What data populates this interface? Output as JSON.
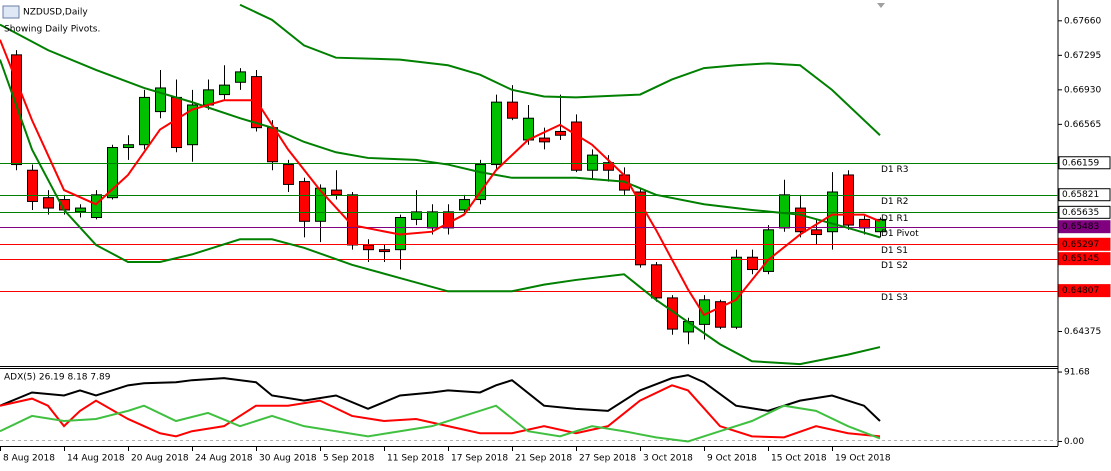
{
  "chart_data": {
    "type": "candlestick",
    "title": "NZDUSD,Daily",
    "subtitle": "Showing Daily Pivots.",
    "categories": [
      "8 Aug 2018",
      null,
      null,
      null,
      "14 Aug 2018",
      null,
      null,
      null,
      "20 Aug 2018",
      null,
      null,
      null,
      "24 Aug 2018",
      null,
      null,
      null,
      "30 Aug 2018",
      null,
      null,
      null,
      "5 Sep 2018",
      null,
      null,
      null,
      "11 Sep 2018",
      null,
      null,
      null,
      "17 Sep 2018",
      null,
      null,
      null,
      "21 Sep 2018",
      null,
      null,
      null,
      "27 Sep 2018",
      null,
      null,
      null,
      "3 Oct 2018",
      null,
      null,
      null,
      "9 Oct 2018",
      null,
      null,
      null,
      "15 Oct 2018",
      null,
      null,
      null,
      "19 Oct 2018",
      null,
      null,
      null
    ],
    "open": [
      null,
      0.673,
      0.6608,
      0.6579,
      0.6577,
      0.6564,
      0.6558,
      0.6579,
      0.6632,
      0.6635,
      0.667,
      0.6685,
      0.6635,
      0.6677,
      0.6688,
      0.6701,
      0.6707,
      0.6653,
      0.6614,
      0.6596,
      0.6554,
      0.6587,
      0.6582,
      0.6529,
      0.6524,
      0.6524,
      0.6556,
      0.6547,
      0.6564,
      0.6566,
      0.6577,
      0.6614,
      0.668,
      0.664,
      0.6642,
      0.6649,
      0.6659,
      0.6608,
      0.6616,
      0.6603,
      0.6585,
      0.6508,
      0.6473,
      0.6437,
      0.6445,
      0.6469,
      0.6442,
      0.6516,
      0.6501,
      0.6547,
      0.6568,
      0.6545,
      0.6543,
      0.6603,
      0.6556,
      0.6543
    ],
    "high": [
      null,
      0.6735,
      0.6614,
      0.6587,
      0.6582,
      0.6572,
      0.6587,
      0.6635,
      0.6645,
      0.6693,
      0.6714,
      0.6704,
      0.6693,
      0.6704,
      0.6719,
      0.6716,
      0.6714,
      0.6661,
      0.6619,
      0.66,
      0.6593,
      0.6608,
      0.6585,
      0.6535,
      0.6529,
      0.6561,
      0.6587,
      0.6572,
      0.6572,
      0.6582,
      0.6619,
      0.6688,
      0.6698,
      0.6677,
      0.6653,
      0.6688,
      0.6667,
      0.663,
      0.6624,
      0.6611,
      0.6589,
      0.6511,
      0.6476,
      0.6452,
      0.6476,
      0.6471,
      0.6524,
      0.6524,
      0.655,
      0.6598,
      0.6582,
      0.6556,
      0.6606,
      0.6608,
      0.6561,
      0.6558
    ],
    "low": [
      null,
      0.6608,
      0.6566,
      0.6561,
      0.6561,
      0.6558,
      0.6556,
      0.6577,
      0.6619,
      0.663,
      0.6663,
      0.6627,
      0.6617,
      0.6672,
      0.6682,
      0.6693,
      0.6649,
      0.6608,
      0.6585,
      0.6537,
      0.6532,
      0.6577,
      0.6524,
      0.6511,
      0.6511,
      0.6503,
      0.655,
      0.654,
      0.654,
      0.6561,
      0.6572,
      0.6608,
      0.6661,
      0.6635,
      0.663,
      0.664,
      0.6606,
      0.6598,
      0.6596,
      0.6582,
      0.6505,
      0.6469,
      0.6434,
      0.6424,
      0.6429,
      0.644,
      0.644,
      0.6498,
      0.6498,
      0.6543,
      0.6537,
      0.6529,
      0.6524,
      0.6545,
      0.654,
      0.6537
    ],
    "close": [
      null,
      0.6614,
      0.6575,
      0.6568,
      0.6566,
      0.6568,
      0.6582,
      0.6632,
      0.6635,
      0.6685,
      0.6695,
      0.6632,
      0.6677,
      0.6693,
      0.6698,
      0.6712,
      0.6653,
      0.6617,
      0.6593,
      0.6554,
      0.6589,
      0.6582,
      0.6529,
      0.6524,
      0.6522,
      0.6558,
      0.6564,
      0.6564,
      0.6547,
      0.6577,
      0.6614,
      0.668,
      0.6663,
      0.6663,
      0.6638,
      0.6645,
      0.6608,
      0.6624,
      0.6608,
      0.6587,
      0.6508,
      0.6473,
      0.644,
      0.6448,
      0.6471,
      0.6442,
      0.6516,
      0.6503,
      0.6545,
      0.6582,
      0.6543,
      0.654,
      0.6585,
      0.655,
      0.6547,
      0.6556
    ],
    "up_color": "#00c000",
    "down_color": "#ff0000",
    "ylim": [
      0.6401,
      0.6788
    ],
    "yticks": [
      {
        "value": 0.6766,
        "label": "0.67660"
      },
      {
        "value": 0.67295,
        "label": "0.67295"
      },
      {
        "value": 0.6693,
        "label": "0.66930"
      },
      {
        "value": 0.66565,
        "label": "0.66565"
      },
      {
        "value": 0.64375,
        "label": "0.64375"
      }
    ],
    "lines": [
      {
        "color": "#008000",
        "x": [
          15,
          17,
          19,
          21,
          25,
          28,
          30,
          32,
          34,
          36,
          40,
          42,
          44,
          46,
          48,
          50,
          52,
          55
        ],
        "values": [
          0.6783,
          0.6767,
          0.674,
          0.6727,
          0.6725,
          0.6719,
          0.6709,
          0.6693,
          0.6686,
          0.6685,
          0.6688,
          0.6704,
          0.6716,
          0.6719,
          0.6721,
          0.6719,
          0.6693,
          0.6645
        ]
      },
      {
        "color": "#008000",
        "x": [
          0,
          3,
          6,
          9,
          12,
          15,
          17,
          19,
          21,
          23,
          26,
          28,
          30,
          32,
          36,
          39,
          41,
          44,
          47,
          50,
          53,
          55
        ],
        "values": [
          0.6762,
          0.6735,
          0.6714,
          0.6695,
          0.668,
          0.6663,
          0.6653,
          0.6638,
          0.6627,
          0.6621,
          0.6619,
          0.6614,
          0.6606,
          0.66,
          0.66,
          0.6596,
          0.6582,
          0.6572,
          0.6566,
          0.6561,
          0.6547,
          0.6537
        ]
      },
      {
        "color": "#008000",
        "x": [
          0,
          2,
          4,
          6,
          8,
          10,
          12,
          15,
          17,
          19,
          22,
          25,
          28,
          32,
          34,
          36,
          39,
          41,
          45,
          47,
          50,
          53,
          55
        ],
        "values": [
          0.6725,
          0.663,
          0.6566,
          0.6529,
          0.6511,
          0.6511,
          0.6519,
          0.6535,
          0.6535,
          0.6526,
          0.6508,
          0.6494,
          0.648,
          0.648,
          0.6487,
          0.6492,
          0.6498,
          0.6471,
          0.6424,
          0.6406,
          0.6403,
          0.6413,
          0.6421
        ]
      },
      {
        "color": "#ff0000",
        "x": [
          0,
          2,
          4,
          6,
          8,
          10,
          12,
          14,
          16,
          18,
          20,
          22,
          25,
          27,
          29,
          31,
          33,
          35,
          37,
          39,
          41,
          43,
          44,
          46,
          48,
          50,
          52,
          54,
          55
        ],
        "values": [
          0.6746,
          0.6661,
          0.6587,
          0.6572,
          0.6603,
          0.6651,
          0.6672,
          0.6682,
          0.6682,
          0.663,
          0.6587,
          0.655,
          0.654,
          0.6543,
          0.6561,
          0.6608,
          0.664,
          0.6656,
          0.6635,
          0.6603,
          0.6545,
          0.6482,
          0.6455,
          0.6471,
          0.6513,
          0.654,
          0.6561,
          0.6561,
          0.6554
        ]
      }
    ],
    "pivots": [
      {
        "label": "D1 R3",
        "value": 0.66159,
        "color": "#008000"
      },
      {
        "label": "D1 R2",
        "value": 0.65821,
        "color": "#008000"
      },
      {
        "label": "D1 R1",
        "value": 0.65635,
        "color": "#008000"
      },
      {
        "label": "D1 Pivot",
        "value": 0.65483,
        "color": "#800080"
      },
      {
        "label": "D1 S1",
        "value": 0.65297,
        "color": "#ff0000"
      },
      {
        "label": "D1 S2",
        "value": 0.65145,
        "color": "#ff0000"
      },
      {
        "label": "D1 S3",
        "value": 0.64807,
        "color": "#ff0000"
      }
    ],
    "indicator": {
      "label": "ADX(5) 26.19 8.18 7.89",
      "ylim": [
        -6,
        97
      ],
      "yticks": [
        91.68,
        {
          "value": 0,
          "label": "0.00"
        }
      ],
      "lines": [
        {
          "color": "#000000",
          "x": [
            0,
            2,
            4,
            5,
            6,
            7,
            8,
            9,
            11,
            12,
            14,
            16,
            17,
            19,
            21,
            23,
            25,
            27,
            28,
            30,
            31,
            32,
            34,
            36,
            38,
            40,
            42,
            43,
            44,
            46,
            48,
            50,
            52,
            54,
            55
          ],
          "values": [
            47.2,
            64.7,
            60.7,
            67.4,
            60.7,
            67.4,
            74.1,
            76.8,
            78.2,
            80.9,
            83.6,
            78.2,
            60.7,
            53.9,
            60.7,
            43.1,
            60.7,
            64.7,
            67.4,
            64.7,
            74.1,
            80.9,
            47.2,
            43.1,
            40.4,
            67.4,
            83.6,
            87.6,
            78.2,
            47.2,
            40.4,
            53.9,
            60.7,
            47.2,
            27.0
          ]
        },
        {
          "color": "#ff0000",
          "x": [
            0,
            2,
            3,
            4,
            5,
            6,
            8,
            10,
            11,
            12,
            14,
            16,
            18,
            20,
            22,
            24,
            26,
            28,
            30,
            32,
            34,
            36,
            38,
            40,
            42,
            43,
            45,
            47,
            49,
            51,
            53,
            55
          ],
          "values": [
            47.2,
            56.6,
            47.2,
            20.2,
            40.4,
            53.9,
            29.7,
            10.8,
            6.7,
            13.5,
            20.2,
            47.2,
            47.2,
            53.9,
            33.7,
            27.0,
            29.7,
            20.2,
            10.8,
            10.8,
            20.2,
            10.8,
            20.2,
            53.9,
            74.1,
            67.4,
            20.2,
            6.7,
            5.4,
            20.2,
            10.8,
            6.7
          ]
        },
        {
          "color": "#40c040",
          "x": [
            0,
            2,
            4,
            6,
            8,
            9,
            11,
            13,
            15,
            17,
            19,
            21,
            23,
            25,
            27,
            29,
            31,
            33,
            35,
            37,
            39,
            41,
            43,
            45,
            47,
            49,
            51,
            53,
            55
          ],
          "values": [
            13.5,
            33.7,
            27.0,
            29.7,
            40.4,
            47.2,
            27.0,
            37.7,
            20.2,
            33.7,
            20.2,
            13.5,
            6.7,
            13.5,
            20.2,
            33.7,
            47.2,
            13.5,
            6.7,
            20.2,
            13.5,
            5.4,
            0,
            13.5,
            27.0,
            47.2,
            40.4,
            20.2,
            4.0
          ]
        }
      ]
    }
  }
}
